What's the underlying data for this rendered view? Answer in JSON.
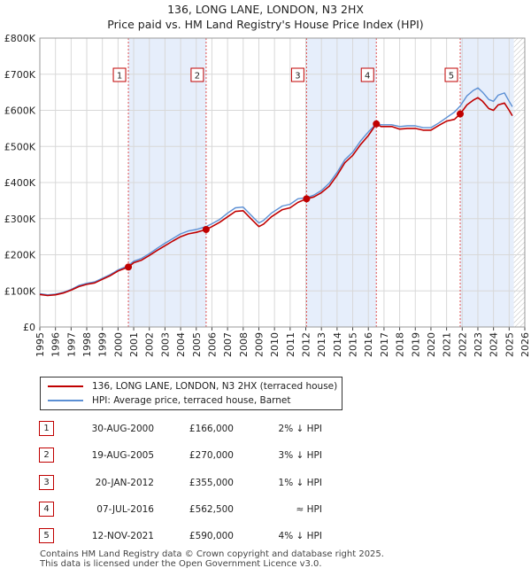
{
  "title_line1": "136, LONG LANE, LONDON, N3 2HX",
  "title_line2": "Price paid vs. HM Land Registry's House Price Index (HPI)",
  "colors": {
    "price_line": "#c00000",
    "hpi_line": "#5b8fd4",
    "shade": "#e6eefb",
    "grid": "#d8d8d8",
    "marker": "#c00000"
  },
  "legend": {
    "price_label": "136, LONG LANE, LONDON, N3 2HX (terraced house)",
    "hpi_label": "HPI: Average price, terraced house, Barnet"
  },
  "sales": [
    {
      "num": "1",
      "date": "30-AUG-2000",
      "price": "£166,000",
      "hpi": "2% ↓ HPI"
    },
    {
      "num": "2",
      "date": "19-AUG-2005",
      "price": "£270,000",
      "hpi": "3% ↓ HPI"
    },
    {
      "num": "3",
      "date": "20-JAN-2012",
      "price": "£355,000",
      "hpi": "1% ↓ HPI"
    },
    {
      "num": "4",
      "date": "07-JUL-2016",
      "price": "£562,500",
      "hpi": "≈ HPI"
    },
    {
      "num": "5",
      "date": "12-NOV-2021",
      "price": "£590,000",
      "hpi": "4% ↓ HPI"
    }
  ],
  "footer_line1": "Contains HM Land Registry data © Crown copyright and database right 2025.",
  "footer_line2": "This data is licensed under the Open Government Licence v3.0.",
  "chart_data": {
    "type": "line",
    "xlim": [
      1995,
      2026
    ],
    "ylim": [
      0,
      800000
    ],
    "y_ticks": [
      0,
      100000,
      200000,
      300000,
      400000,
      500000,
      600000,
      700000,
      800000
    ],
    "y_tick_labels": [
      "£0",
      "£100K",
      "£200K",
      "£300K",
      "£400K",
      "£500K",
      "£600K",
      "£700K",
      "£800K"
    ],
    "x_ticks": [
      1995,
      1996,
      1997,
      1998,
      1999,
      2000,
      2001,
      2002,
      2003,
      2004,
      2005,
      2006,
      2007,
      2008,
      2009,
      2010,
      2011,
      2012,
      2013,
      2014,
      2015,
      2016,
      2017,
      2018,
      2019,
      2020,
      2021,
      2022,
      2023,
      2024,
      2025,
      2026
    ],
    "x_tick_labels": [
      "1995",
      "1996",
      "1997",
      "1998",
      "1999",
      "2000",
      "2001",
      "2002",
      "2003",
      "2004",
      "2005",
      "2006",
      "2007",
      "2008",
      "2009",
      "2010",
      "2011",
      "2012",
      "2013",
      "2014",
      "2015",
      "2016",
      "2017",
      "2018",
      "2019",
      "2020",
      "2021",
      "2022",
      "2023",
      "2024",
      "2025",
      "2026"
    ],
    "shaded_ranges": [
      [
        2000.66,
        2005.63
      ],
      [
        2012.05,
        2016.51
      ],
      [
        2021.87,
        2025.3
      ]
    ],
    "hatched_from": 2025.3,
    "sale_points": [
      {
        "label": "1",
        "x": 2000.66,
        "y": 166000
      },
      {
        "label": "2",
        "x": 2005.63,
        "y": 270000
      },
      {
        "label": "3",
        "x": 2012.05,
        "y": 355000
      },
      {
        "label": "4",
        "x": 2016.51,
        "y": 562500
      },
      {
        "label": "5",
        "x": 2021.87,
        "y": 590000
      }
    ],
    "series": [
      {
        "name": "136, LONG LANE, LONDON, N3 2HX (terraced house)",
        "x": [
          1995,
          1995.5,
          1996,
          1996.5,
          1997,
          1997.5,
          1998,
          1998.5,
          1999,
          1999.5,
          2000,
          2000.66,
          2001,
          2001.5,
          2002,
          2002.5,
          2003,
          2003.5,
          2004,
          2004.5,
          2005,
          2005.63,
          2006,
          2006.5,
          2007,
          2007.5,
          2008,
          2008.5,
          2009,
          2009.3,
          2009.8,
          2010.5,
          2011,
          2011.5,
          2012.05,
          2012.5,
          2013,
          2013.5,
          2014,
          2014.5,
          2015,
          2015.5,
          2016,
          2016.51,
          2016.8,
          2017.5,
          2018,
          2018.5,
          2019,
          2019.5,
          2020,
          2020.5,
          2021,
          2021.5,
          2021.87,
          2022.3,
          2022.7,
          2023,
          2023.3,
          2023.7,
          2024,
          2024.3,
          2024.7,
          2025,
          2025.2
        ],
        "values": [
          90000,
          87000,
          89000,
          94000,
          102000,
          112000,
          118000,
          122000,
          132000,
          142000,
          155000,
          166000,
          178000,
          185000,
          198000,
          212000,
          225000,
          238000,
          250000,
          258000,
          262000,
          270000,
          278000,
          290000,
          305000,
          320000,
          322000,
          300000,
          278000,
          285000,
          305000,
          325000,
          330000,
          345000,
          355000,
          360000,
          372000,
          390000,
          420000,
          455000,
          475000,
          505000,
          530000,
          562500,
          555000,
          555000,
          548000,
          550000,
          550000,
          545000,
          545000,
          558000,
          570000,
          575000,
          590000,
          615000,
          628000,
          635000,
          625000,
          605000,
          600000,
          615000,
          620000,
          600000,
          585000
        ]
      },
      {
        "name": "HPI: Average price, terraced house, Barnet",
        "x": [
          1995,
          1995.5,
          1996,
          1996.5,
          1997,
          1997.5,
          1998,
          1998.5,
          1999,
          1999.5,
          2000,
          2000.66,
          2001,
          2001.5,
          2002,
          2002.5,
          2003,
          2003.5,
          2004,
          2004.5,
          2005,
          2005.63,
          2006,
          2006.5,
          2007,
          2007.5,
          2008,
          2008.5,
          2009,
          2009.3,
          2009.8,
          2010.5,
          2011,
          2011.5,
          2012.05,
          2012.5,
          2013,
          2013.5,
          2014,
          2014.5,
          2015,
          2015.5,
          2016,
          2016.51,
          2016.8,
          2017.5,
          2018,
          2018.5,
          2019,
          2019.5,
          2020,
          2020.5,
          2021,
          2021.5,
          2021.87,
          2022.3,
          2022.7,
          2023,
          2023.3,
          2023.7,
          2024,
          2024.3,
          2024.7,
          2025,
          2025.2
        ],
        "values": [
          92000,
          89000,
          91000,
          96000,
          104000,
          115000,
          121000,
          125000,
          135000,
          145000,
          158000,
          170000,
          182000,
          190000,
          203000,
          218000,
          232000,
          245000,
          258000,
          266000,
          270000,
          278000,
          286000,
          298000,
          315000,
          330000,
          332000,
          310000,
          288000,
          295000,
          315000,
          335000,
          340000,
          355000,
          358000,
          365000,
          378000,
          398000,
          428000,
          463000,
          484000,
          515000,
          540000,
          563000,
          560000,
          560000,
          555000,
          557000,
          557000,
          552000,
          552000,
          565000,
          580000,
          595000,
          612000,
          640000,
          655000,
          662000,
          650000,
          630000,
          625000,
          642000,
          648000,
          625000,
          610000
        ]
      }
    ]
  }
}
